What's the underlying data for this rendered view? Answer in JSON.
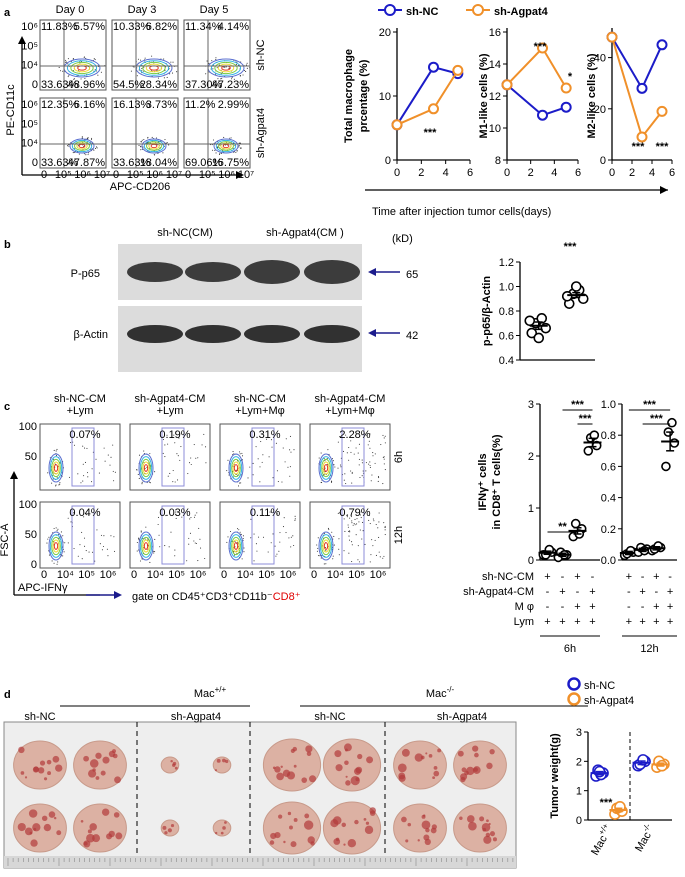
{
  "panel_labels": [
    "a",
    "b",
    "c",
    "d"
  ],
  "flow_a": {
    "days": [
      "Day 0",
      "Day 3",
      "Day 5"
    ],
    "rows": [
      "sh-NC",
      "sh-Agpat4"
    ],
    "quadrants": [
      [
        [
          "11.83%",
          "5.57%",
          "33.63%",
          "48.96%"
        ],
        [
          "10.33%",
          "6.82%",
          "54.5%",
          "28.34%"
        ],
        [
          "11.34%",
          "4.14%",
          "37.30%",
          "47.23%"
        ]
      ],
      [
        [
          "12.35%",
          "6.16%",
          "33.63%",
          "47.87%"
        ],
        [
          "16.13%",
          "3.73%",
          "33.63%",
          "18.04%"
        ],
        [
          "11.2%",
          "2.99%",
          "69.06%",
          "16.75%"
        ]
      ]
    ],
    "y_label": "PE-CD11c",
    "x_label": "APC-CD206",
    "yticks": [
      "10⁶",
      "10⁵",
      "10⁴",
      "0"
    ],
    "xticks": [
      "0",
      "10⁵",
      "10⁶",
      "10⁷"
    ]
  },
  "shared_x_label": "Time after injection tumor cells(days)",
  "blot": {
    "headers": [
      "sh-NC(CM)",
      "sh-Agpat4(CM )"
    ],
    "unit": "(kD)",
    "bands": [
      {
        "label": "P-p65",
        "size": "65"
      },
      {
        "label": "β-Actin",
        "size": "42"
      }
    ]
  },
  "flow_c": {
    "headers": [
      [
        "sh-NC-CM",
        "+Lym"
      ],
      [
        "sh-Agpat4-CM",
        "+Lym"
      ],
      [
        "sh-NC-CM",
        "+Lym+Mφ"
      ],
      [
        "sh-Agpat4-CM",
        "+Lym+Mφ"
      ]
    ],
    "times": [
      "6h",
      "12h"
    ],
    "gates": [
      [
        "0.07%",
        "0.19%",
        "0.31%",
        "2.28%"
      ],
      [
        "0.04%",
        "0.03%",
        "0.11%",
        "0.79%"
      ]
    ],
    "y_label": "FSC-A",
    "x_label": "APC-IFNγ",
    "gate_note": {
      "text": "gate on CD45⁺CD3⁺CD11b⁻",
      "highlight": "CD8⁺"
    },
    "yticks": [
      "100",
      "50",
      "0"
    ],
    "xticks": [
      "0",
      "10⁴",
      "10⁵",
      "10⁶"
    ]
  },
  "photo": {
    "groups": [
      {
        "genotype": {
          "base": "Mac",
          "sup": "+/+"
        },
        "arms": [
          "sh-NC",
          "sh-Agpat4"
        ]
      },
      {
        "genotype": {
          "base": "Mac",
          "sup": "-/-"
        },
        "arms": [
          "sh-NC",
          "sh-Agpat4"
        ]
      }
    ]
  },
  "chart_data": [
    {
      "type": "line",
      "ylabel": [
        "Total macrophage",
        "prcentage (%)"
      ],
      "x": [
        0,
        3,
        5
      ],
      "xlim": [
        0,
        6
      ],
      "xticks": [
        0,
        2,
        4,
        6
      ],
      "ylim": [
        0,
        20
      ],
      "yticks": [
        0,
        10,
        20
      ],
      "annotations": [
        "***"
      ],
      "series": [
        {
          "name": "sh-NC",
          "color": "#1c1cc8",
          "values": [
            5.5,
            14.5,
            13.5
          ]
        },
        {
          "name": "sh-Agpat4",
          "color": "#f0902a",
          "values": [
            5.5,
            8,
            14
          ]
        }
      ]
    },
    {
      "type": "line",
      "ylabel": [
        "M1-like cells (%)"
      ],
      "x": [
        0,
        3,
        5
      ],
      "xlim": [
        0,
        6
      ],
      "xticks": [
        0,
        2,
        4,
        6
      ],
      "ylim": [
        8,
        16
      ],
      "yticks": [
        8,
        10,
        12,
        14,
        16
      ],
      "annotations": [
        "***",
        "*"
      ],
      "series": [
        {
          "color": "#1c1cc8",
          "values": [
            12.7,
            10.8,
            11.3
          ]
        },
        {
          "color": "#f0902a",
          "values": [
            12.7,
            15,
            12.5
          ]
        }
      ]
    },
    {
      "type": "line",
      "ylabel": [
        "M2-like cells (%)"
      ],
      "x": [
        0,
        3,
        5
      ],
      "xlim": [
        0,
        6
      ],
      "xticks": [
        0,
        2,
        4,
        6
      ],
      "ylim": [
        0,
        50
      ],
      "yticks": [
        0,
        20,
        40
      ],
      "annotations": [
        "***",
        "***"
      ],
      "series": [
        {
          "color": "#1c1cc8",
          "values": [
            48,
            28,
            45
          ]
        },
        {
          "color": "#f0902a",
          "values": [
            48,
            9,
            19
          ]
        }
      ]
    },
    {
      "type": "dot",
      "ylabel": [
        "p-p65/β-Actin"
      ],
      "categories": [
        null,
        null
      ],
      "color": "#000000",
      "ylim": [
        0.4,
        1.2
      ],
      "yticks": [
        0.4,
        0.6,
        0.8,
        {
          "value": 1,
          "label": "1.0"
        },
        1.2
      ],
      "annotations": [
        "***"
      ],
      "values": [
        [
          0.62,
          0.66,
          0.7,
          0.74,
          0.58,
          0.72
        ],
        [
          0.86,
          0.9,
          0.94,
          0.97,
          1.0,
          0.92
        ]
      ],
      "means": [
        0.68,
        0.93
      ],
      "errors": [
        0.03,
        0.02
      ]
    },
    {
      "type": "dot",
      "ylabel": [
        "IFNγ⁺ cells",
        "in CD8⁺ T cells(%)"
      ],
      "xlabel": "6h",
      "categories": [
        null,
        null,
        null,
        null
      ],
      "color": "#000000",
      "ylim": [
        0,
        3
      ],
      "yticks": [
        0,
        1,
        2,
        3
      ],
      "annotations": [
        "***",
        "***",
        "**"
      ],
      "values": [
        [
          0.1,
          0.15,
          0.1,
          0.2
        ],
        [
          0.05,
          0.1,
          0.15,
          0.1
        ],
        [
          0.45,
          0.6,
          0.7,
          0.5
        ],
        [
          2.1,
          2.2,
          2.35,
          2.4
        ]
      ],
      "means": [
        0.14,
        0.1,
        0.56,
        2.26
      ],
      "errors": [
        0.03,
        0.03,
        0.06,
        0.08
      ],
      "condition_labels": [
        "sh-NC-CM",
        "sh-Agpat4-CM",
        "M φ",
        "Lym"
      ],
      "conditions": [
        [
          "+",
          "-",
          "+",
          "-"
        ],
        [
          "-",
          "+",
          "-",
          "+"
        ],
        [
          "-",
          "-",
          "+",
          "+"
        ],
        [
          "+",
          "+",
          "+",
          "+"
        ]
      ]
    },
    {
      "type": "dot",
      "xlabel": "12h",
      "categories": [
        null,
        null,
        null,
        null
      ],
      "color": "#000000",
      "ylim": [
        0,
        1
      ],
      "yticks": [
        {
          "value": 0,
          "label": "0.0"
        },
        0.2,
        0.4,
        0.6,
        0.8,
        {
          "value": 1,
          "label": "1.0"
        }
      ],
      "annotations": [
        "***",
        "***"
      ],
      "values": [
        [
          0.03,
          0.05,
          0.04,
          0.06
        ],
        [
          0.05,
          0.07,
          0.08,
          0.06
        ],
        [
          0.06,
          0.08,
          0.07,
          0.09
        ],
        [
          0.6,
          0.75,
          0.82,
          0.88
        ]
      ],
      "means": [
        0.045,
        0.065,
        0.075,
        0.76
      ],
      "errors": [
        0.01,
        0.01,
        0.01,
        0.06
      ],
      "conditions": [
        [
          "+",
          "-",
          "+",
          "-"
        ],
        [
          "-",
          "+",
          "-",
          "+"
        ],
        [
          "-",
          "-",
          "+",
          "+"
        ],
        [
          "+",
          "+",
          "+",
          "+"
        ]
      ]
    },
    {
      "type": "dot",
      "ylabel": [
        "Tumor weight(g)"
      ],
      "categories": [
        {
          "base": "Mac",
          "sup": "+/+"
        },
        {
          "base": "Mac",
          "sup": "-/-"
        }
      ],
      "ylim": [
        0,
        3
      ],
      "yticks": [
        0,
        1,
        2,
        3
      ],
      "annotations": [
        "***"
      ],
      "series": [
        {
          "name": "sh-NC",
          "color": "#1c1cc8",
          "values": [
            [
              1.5,
              1.6,
              1.7,
              1.55,
              1.65
            ],
            [
              1.85,
              2.0,
              1.9,
              2.05
            ]
          ],
          "means": [
            1.6,
            1.95
          ],
          "errors": [
            0.05,
            0.06
          ]
        },
        {
          "name": "sh-Agpat4",
          "color": "#f0902a",
          "values": [
            [
              0.2,
              0.3,
              0.4,
              0.45
            ],
            [
              1.8,
              1.9,
              2.0,
              1.85
            ]
          ],
          "means": [
            0.34,
            1.89
          ],
          "errors": [
            0.06,
            0.05
          ]
        }
      ]
    }
  ]
}
